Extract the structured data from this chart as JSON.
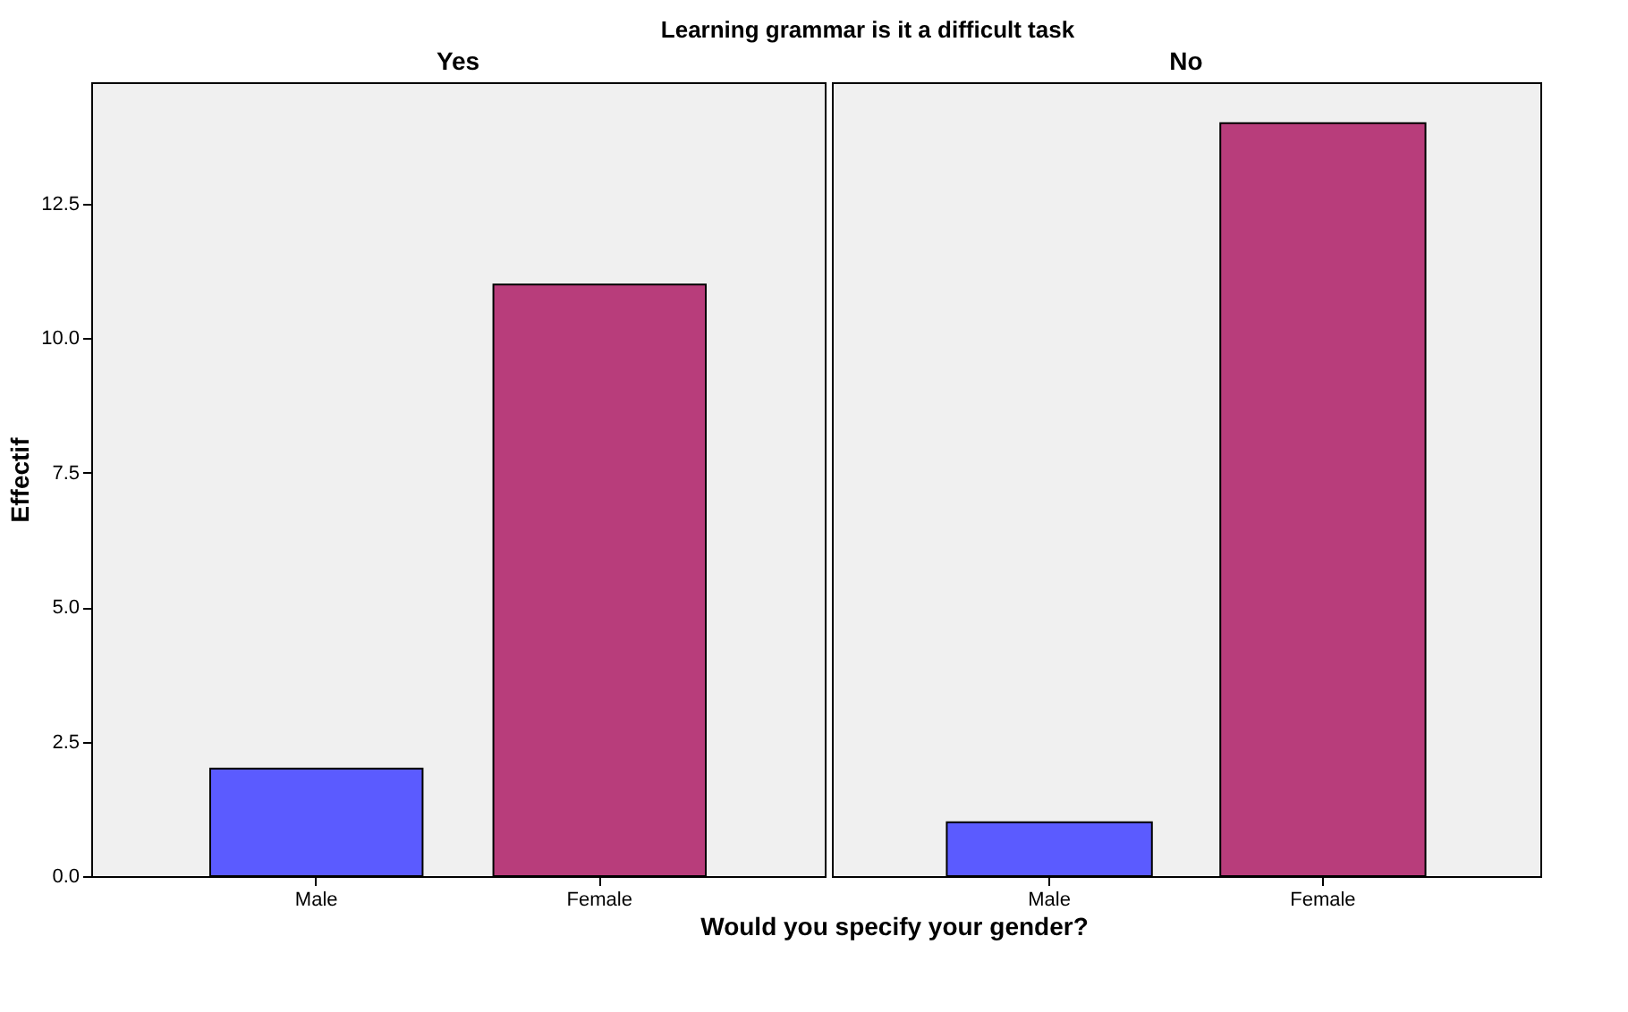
{
  "chart_data": [
    {
      "type": "bar",
      "title": "Learning grammar is it a difficult task",
      "subtitle": "Yes",
      "xlabel": "Would you specify your gender?",
      "ylabel": "Effectif",
      "categories": [
        "Male",
        "Female"
      ],
      "values": [
        2,
        11
      ],
      "colors": [
        "#5b5bff",
        "#b83d7b"
      ],
      "ylim": [
        0,
        14.76
      ],
      "yticks": [
        {
          "value": 0,
          "label": "0.0"
        },
        {
          "value": 2.5,
          "label": "2.5"
        },
        {
          "value": 5,
          "label": "5.0"
        },
        {
          "value": 7.5,
          "label": "7.5"
        },
        {
          "value": 10,
          "label": "10.0"
        },
        {
          "value": 12.5,
          "label": "12.5"
        }
      ]
    },
    {
      "type": "bar",
      "subtitle": "No",
      "categories": [
        "Male",
        "Female"
      ],
      "values": [
        1,
        14
      ],
      "colors": [
        "#5b5bff",
        "#b83d7b"
      ],
      "ylim": [
        0,
        14.76
      ],
      "tick_labels": "x"
    }
  ]
}
